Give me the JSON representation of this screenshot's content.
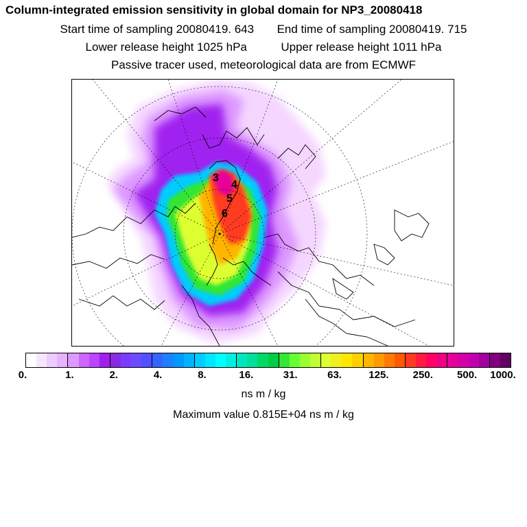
{
  "header": {
    "title": "Column-integrated emission sensitivity in global domain for NP3_20080418",
    "start_time": "Start time of sampling 20080419.   643",
    "end_time": "End time of sampling 20080419.   715",
    "lower_height": "Lower release height 1025 hPa",
    "upper_height": "Upper release height 1011 hPa",
    "tracer_note": "Passive tracer used, meteorological data are from ECMWF"
  },
  "map": {
    "projection": "polar stereographic",
    "point_labels": [
      "3",
      "4",
      "5",
      "6"
    ]
  },
  "legend": {
    "colors": [
      "#ffffff",
      "#f6e6ff",
      "#eeccff",
      "#e6b3ff",
      "#dd99ff",
      "#cc66ff",
      "#bb44ff",
      "#a020f0",
      "#8a2be2",
      "#7b3cff",
      "#6a4dff",
      "#5050ff",
      "#3366ff",
      "#1f80ff",
      "#0099ff",
      "#00b3ff",
      "#00ccff",
      "#00e6ff",
      "#00ffff",
      "#00f0e0",
      "#00e6c0",
      "#00e099",
      "#00d966",
      "#00cc44",
      "#33e633",
      "#66ff33",
      "#99ff33",
      "#bfff33",
      "#ddff33",
      "#f0f020",
      "#ffe600",
      "#ffd000",
      "#ffb400",
      "#ff9900",
      "#ff7a00",
      "#ff5a00",
      "#ff3a20",
      "#ff1a40",
      "#ff0066",
      "#f00080",
      "#e60099",
      "#d600a8",
      "#c000b0",
      "#a000a0",
      "#800080",
      "#600060"
    ],
    "tick_labels": [
      "0.",
      "1.",
      "2.",
      "4.",
      "8.",
      "16.",
      "31.",
      "63.",
      "125.",
      "250.",
      "500.",
      "1000."
    ],
    "units": "ns m / kg",
    "max_value": "Maximum value  0.815E+04 ns m / kg"
  }
}
